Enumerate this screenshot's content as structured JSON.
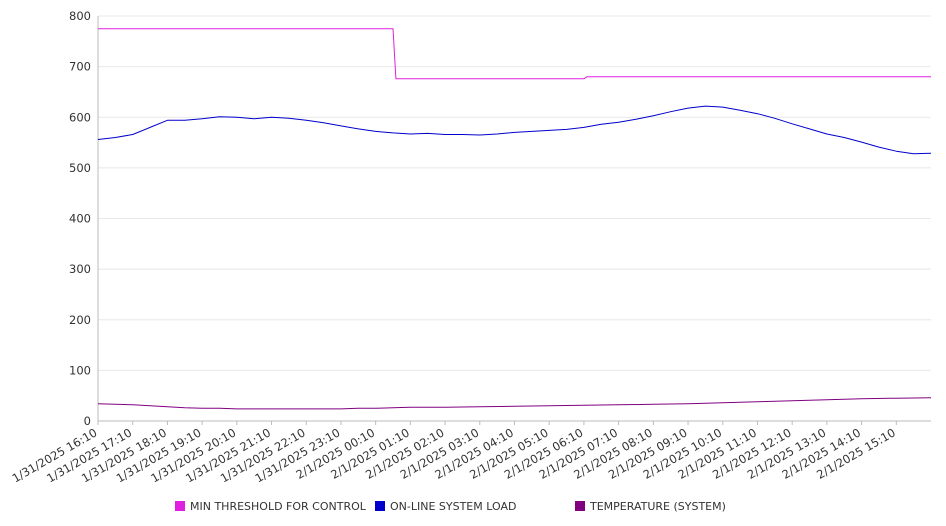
{
  "chart_data": {
    "type": "line",
    "title": "",
    "xlabel": "",
    "ylabel": "",
    "ylim": [
      0,
      800
    ],
    "yticks": [
      0,
      100,
      200,
      300,
      400,
      500,
      600,
      700,
      800
    ],
    "grid": true,
    "legend_position": "bottom",
    "x_tick_labels": [
      "1/31/2025 16:10",
      "1/31/2025 17:10",
      "1/31/2025 18:10",
      "1/31/2025 19:10",
      "1/31/2025 20:10",
      "1/31/2025 21:10",
      "1/31/2025 22:10",
      "1/31/2025 23:10",
      "2/1/2025 00:10",
      "2/1/2025 01:10",
      "2/1/2025 02:10",
      "2/1/2025 03:10",
      "2/1/2025 04:10",
      "2/1/2025 05:10",
      "2/1/2025 06:10",
      "2/1/2025 07:10",
      "2/1/2025 08:10",
      "2/1/2025 09:10",
      "2/1/2025 10:10",
      "2/1/2025 11:10",
      "2/1/2025 12:10",
      "2/1/2025 13:10",
      "2/1/2025 14:10",
      "2/1/2025 15:10"
    ],
    "series": [
      {
        "name": "MIN THRESHOLD FOR CONTROL",
        "color": "#e020e0",
        "points": [
          [
            "1/31/2025 16:10",
            775
          ],
          [
            "2/1/2025 00:40",
            775
          ],
          [
            "2/1/2025 00:45",
            676
          ],
          [
            "2/1/2025 06:10",
            676
          ],
          [
            "2/1/2025 06:15",
            680
          ],
          [
            "2/1/2025 16:10",
            680
          ]
        ]
      },
      {
        "name": "ON-LINE SYSTEM LOAD",
        "color": "#0000cc",
        "points": [
          [
            "1/31/2025 16:10",
            556
          ],
          [
            "1/31/2025 16:40",
            560
          ],
          [
            "1/31/2025 17:10",
            566
          ],
          [
            "1/31/2025 17:40",
            580
          ],
          [
            "1/31/2025 18:10",
            594
          ],
          [
            "1/31/2025 18:40",
            594
          ],
          [
            "1/31/2025 19:10",
            597
          ],
          [
            "1/31/2025 19:40",
            601
          ],
          [
            "1/31/2025 20:10",
            600
          ],
          [
            "1/31/2025 20:40",
            597
          ],
          [
            "1/31/2025 21:10",
            600
          ],
          [
            "1/31/2025 21:40",
            598
          ],
          [
            "1/31/2025 22:10",
            594
          ],
          [
            "1/31/2025 22:40",
            589
          ],
          [
            "1/31/2025 23:10",
            583
          ],
          [
            "1/31/2025 23:40",
            577
          ],
          [
            "2/1/2025 00:10",
            572
          ],
          [
            "2/1/2025 00:40",
            569
          ],
          [
            "2/1/2025 01:10",
            567
          ],
          [
            "2/1/2025 01:40",
            568
          ],
          [
            "2/1/2025 02:10",
            566
          ],
          [
            "2/1/2025 02:40",
            566
          ],
          [
            "2/1/2025 03:10",
            565
          ],
          [
            "2/1/2025 03:40",
            567
          ],
          [
            "2/1/2025 04:10",
            570
          ],
          [
            "2/1/2025 04:40",
            572
          ],
          [
            "2/1/2025 05:10",
            574
          ],
          [
            "2/1/2025 05:40",
            576
          ],
          [
            "2/1/2025 06:10",
            580
          ],
          [
            "2/1/2025 06:40",
            586
          ],
          [
            "2/1/2025 07:10",
            590
          ],
          [
            "2/1/2025 07:40",
            596
          ],
          [
            "2/1/2025 08:10",
            603
          ],
          [
            "2/1/2025 08:40",
            611
          ],
          [
            "2/1/2025 09:10",
            618
          ],
          [
            "2/1/2025 09:40",
            622
          ],
          [
            "2/1/2025 10:10",
            620
          ],
          [
            "2/1/2025 10:40",
            614
          ],
          [
            "2/1/2025 11:10",
            607
          ],
          [
            "2/1/2025 11:40",
            598
          ],
          [
            "2/1/2025 12:10",
            587
          ],
          [
            "2/1/2025 12:40",
            577
          ],
          [
            "2/1/2025 13:10",
            567
          ],
          [
            "2/1/2025 13:40",
            560
          ],
          [
            "2/1/2025 14:10",
            551
          ],
          [
            "2/1/2025 14:40",
            541
          ],
          [
            "2/1/2025 15:10",
            533
          ],
          [
            "2/1/2025 15:40",
            528
          ],
          [
            "2/1/2025 16:10",
            529
          ]
        ]
      },
      {
        "name": "TEMPERATURE (SYSTEM)",
        "color": "#800080",
        "points": [
          [
            "1/31/2025 16:10",
            34
          ],
          [
            "1/31/2025 16:40",
            33
          ],
          [
            "1/31/2025 17:10",
            32
          ],
          [
            "1/31/2025 17:40",
            30
          ],
          [
            "1/31/2025 18:10",
            28
          ],
          [
            "1/31/2025 18:40",
            26
          ],
          [
            "1/31/2025 19:10",
            25
          ],
          [
            "1/31/2025 19:40",
            25
          ],
          [
            "1/31/2025 20:10",
            24
          ],
          [
            "1/31/2025 21:10",
            24
          ],
          [
            "1/31/2025 22:10",
            24
          ],
          [
            "1/31/2025 23:10",
            24
          ],
          [
            "1/31/2025 23:40",
            25
          ],
          [
            "2/1/2025 00:10",
            25
          ],
          [
            "2/1/2025 00:40",
            26
          ],
          [
            "2/1/2025 01:10",
            27
          ],
          [
            "2/1/2025 02:10",
            27
          ],
          [
            "2/1/2025 03:10",
            28
          ],
          [
            "2/1/2025 04:10",
            29
          ],
          [
            "2/1/2025 05:10",
            30
          ],
          [
            "2/1/2025 06:10",
            31
          ],
          [
            "2/1/2025 07:10",
            32
          ],
          [
            "2/1/2025 08:10",
            33
          ],
          [
            "2/1/2025 09:10",
            34
          ],
          [
            "2/1/2025 10:10",
            36
          ],
          [
            "2/1/2025 11:10",
            38
          ],
          [
            "2/1/2025 12:10",
            40
          ],
          [
            "2/1/2025 13:10",
            42
          ],
          [
            "2/1/2025 14:10",
            44
          ],
          [
            "2/1/2025 15:10",
            45
          ],
          [
            "2/1/2025 16:10",
            46
          ]
        ]
      }
    ]
  },
  "legend": {
    "items": [
      {
        "label": "MIN THRESHOLD FOR CONTROL",
        "color": "#e020e0"
      },
      {
        "label": "ON-LINE SYSTEM LOAD",
        "color": "#0000cc"
      },
      {
        "label": "TEMPERATURE (SYSTEM)",
        "color": "#800080"
      }
    ]
  }
}
